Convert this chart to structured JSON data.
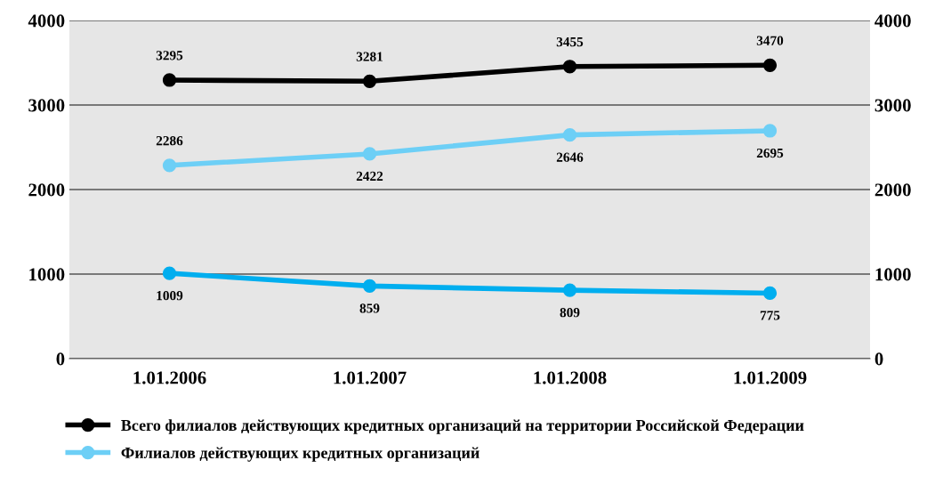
{
  "chart_data": {
    "type": "line",
    "categories": [
      "1.01.2006",
      "1.01.2007",
      "1.01.2008",
      "1.01.2009"
    ],
    "series": [
      {
        "name": "Всего филиалов действующих кредитных организаций на территории Российской Федерации",
        "color": "#000000",
        "values": [
          3295,
          3281,
          3455,
          3470
        ]
      },
      {
        "color": "#00aeef",
        "values": [
          1009,
          859,
          809,
          775
        ]
      },
      {
        "name": "Филиалов действующих кредитных организаций",
        "color": "#6dcff6",
        "values": [
          2286,
          2422,
          2646,
          2695
        ]
      }
    ],
    "ylim": [
      0,
      4000
    ],
    "yticks": [
      0,
      1000,
      2000,
      3000,
      4000
    ],
    "y2lim": [
      0,
      4000
    ],
    "y2ticks": [
      0,
      1000,
      2000,
      3000,
      4000
    ],
    "grid": "y",
    "legend": "bottom",
    "marker": "circle",
    "line_style": "solid",
    "data_labels": true
  }
}
